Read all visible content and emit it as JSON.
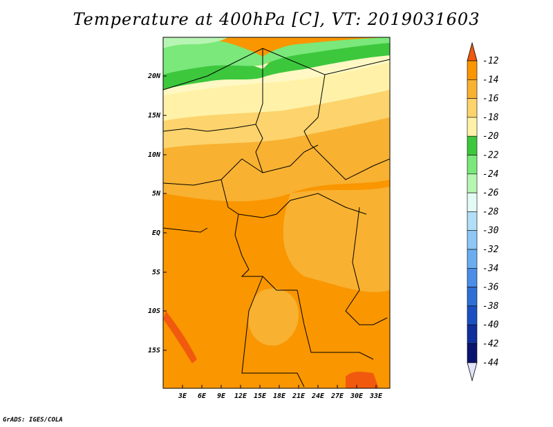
{
  "title": "Temperature at 400hPa [C], VT: 2019031603",
  "footer": "GrADS: IGES/COLA",
  "map": {
    "lat_labels": [
      "20N",
      "15N",
      "10N",
      "5N",
      "EQ",
      "5S",
      "10S",
      "15S"
    ],
    "lon_labels": [
      "3E",
      "6E",
      "9E",
      "12E",
      "15E",
      "18E",
      "21E",
      "24E",
      "27E",
      "30E",
      "33E"
    ]
  },
  "colorbar": {
    "labels": [
      "-12",
      "-14",
      "-16",
      "-18",
      "-20",
      "-22",
      "-24",
      "-26",
      "-28",
      "-30",
      "-32",
      "-34",
      "-36",
      "-38",
      "-40",
      "-42",
      "-44"
    ],
    "colors": [
      "#f15a0e",
      "#f99600",
      "#f8b131",
      "#fcd36c",
      "#fff2a8",
      "#3dc73d",
      "#7ae87a",
      "#b7f5b2",
      "#e4fbf5",
      "#b2dff7",
      "#8ec6f5",
      "#6aaeef",
      "#4a8ee8",
      "#2e6fd6",
      "#1b50c2",
      "#0e2f9c",
      "#0a1470",
      "#e2e2f8"
    ]
  },
  "colors": {
    "land_base": "#f9a71c",
    "border": "#000000"
  }
}
